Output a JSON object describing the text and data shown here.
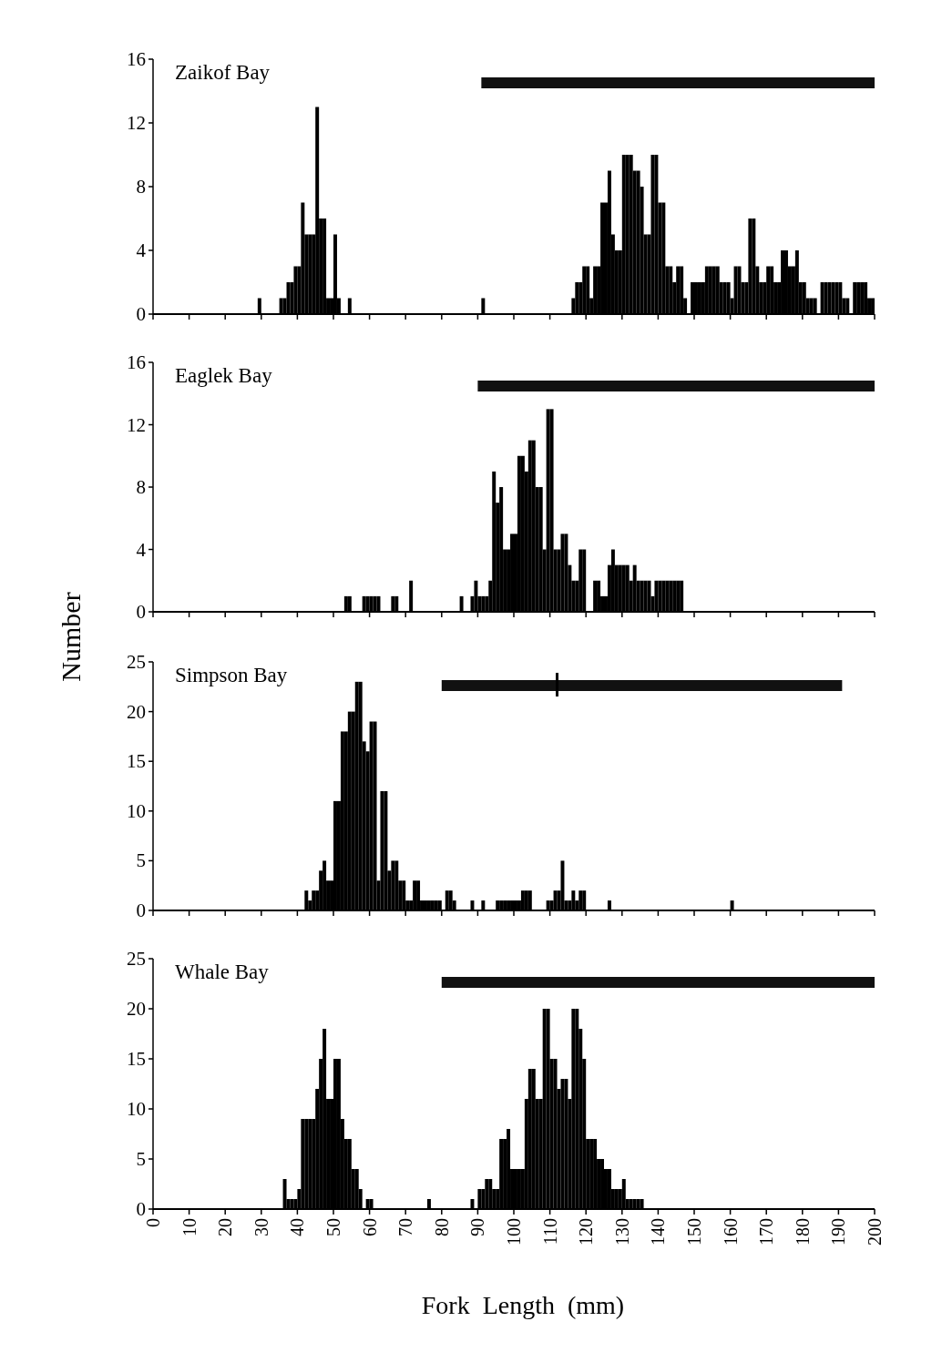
{
  "chart_data": [
    {
      "type": "histogram",
      "title": "Zaikof Bay",
      "xlim": [
        0,
        200
      ],
      "xticks": [
        0,
        10,
        20,
        30,
        40,
        50,
        60,
        70,
        80,
        90,
        100,
        110,
        120,
        130,
        140,
        150,
        160,
        170,
        180,
        190,
        200
      ],
      "ylim": [
        0,
        16
      ],
      "yticks": [
        0,
        4,
        8,
        12,
        16
      ],
      "tick_labels": "y",
      "color": "#000000",
      "grid": false,
      "bands": [
        {
          "axis": "x",
          "from": 91,
          "to": 200,
          "color": "#111111"
        }
      ],
      "bins": [
        0,
        1,
        2,
        3,
        4,
        5,
        6,
        7,
        8,
        9,
        10,
        11,
        12,
        13,
        14,
        15,
        16,
        17,
        18,
        19,
        20,
        21,
        22,
        23,
        24,
        25,
        26,
        27,
        28,
        29,
        30,
        31,
        32,
        33,
        34,
        35,
        36,
        37,
        38,
        39,
        40,
        41,
        42,
        43,
        44,
        45,
        46,
        47,
        48,
        49,
        50,
        51,
        52,
        53,
        54,
        55,
        56,
        57,
        58,
        59,
        60,
        61,
        62,
        63,
        64,
        65,
        66,
        67,
        68,
        69,
        70,
        71,
        72,
        73,
        74,
        75,
        76,
        77,
        78,
        79,
        80,
        81,
        82,
        83,
        84,
        85,
        86,
        87,
        88,
        89,
        90,
        91,
        92,
        93,
        94,
        95,
        96,
        97,
        98,
        99,
        100,
        101,
        102,
        103,
        104,
        105,
        106,
        107,
        108,
        109,
        110,
        111,
        112,
        113,
        114,
        115,
        116,
        117,
        118,
        119,
        120,
        121,
        122,
        123,
        124,
        125,
        126,
        127,
        128,
        129,
        130,
        131,
        132,
        133,
        134,
        135,
        136,
        137,
        138,
        139,
        140,
        141,
        142,
        143,
        144,
        145,
        146,
        147,
        148,
        149,
        150,
        151,
        152,
        153,
        154,
        155,
        156,
        157,
        158,
        159,
        160,
        161,
        162,
        163,
        164,
        165,
        166,
        167,
        168,
        169,
        170,
        171,
        172,
        173,
        174,
        175,
        176,
        177,
        178,
        179,
        180,
        181,
        182,
        183,
        184,
        185,
        186,
        187,
        188,
        189,
        190,
        191,
        192,
        193,
        194,
        195,
        196,
        197,
        198,
        199,
        200
      ],
      "values": [
        0,
        0,
        0,
        0,
        0,
        0,
        0,
        0,
        0,
        0,
        0,
        0,
        0,
        0,
        0,
        0,
        0,
        0,
        0,
        0,
        0,
        0,
        0,
        0,
        0,
        0,
        0,
        0,
        0,
        1,
        0,
        0,
        0,
        0,
        0,
        1,
        1,
        2,
        2,
        3,
        3,
        7,
        5,
        5,
        5,
        13,
        6,
        6,
        1,
        1,
        5,
        1,
        0,
        0,
        1,
        0,
        0,
        0,
        0,
        0,
        0,
        0,
        0,
        0,
        0,
        0,
        0,
        0,
        0,
        0,
        0,
        0,
        0,
        0,
        0,
        0,
        0,
        0,
        0,
        0,
        0,
        0,
        0,
        0,
        0,
        0,
        0,
        0,
        0,
        0,
        0,
        1,
        0,
        0,
        0,
        0,
        0,
        0,
        0,
        0,
        0,
        0,
        0,
        0,
        0,
        0,
        0,
        0,
        0,
        0,
        0,
        0,
        0,
        0,
        0,
        0,
        1,
        2,
        2,
        3,
        3,
        1,
        3,
        3,
        7,
        7,
        9,
        5,
        4,
        4,
        10,
        10,
        10,
        9,
        9,
        8,
        5,
        5,
        10,
        10,
        7,
        7,
        3,
        3,
        2,
        3,
        3,
        1,
        0,
        2,
        2,
        2,
        2,
        3,
        3,
        3,
        3,
        2,
        2,
        2,
        1,
        3,
        3,
        2,
        2,
        6,
        6,
        3,
        2,
        2,
        3,
        3,
        2,
        2,
        4,
        4,
        3,
        3,
        4,
        2,
        2,
        1,
        1,
        1,
        0,
        2,
        2,
        2,
        2,
        2,
        2,
        1,
        1,
        0,
        2,
        2,
        2,
        2,
        1,
        1
      ]
    },
    {
      "type": "histogram",
      "title": "Eaglek Bay",
      "ylabel": "Number",
      "xlim": [
        0,
        200
      ],
      "xticks": [
        0,
        10,
        20,
        30,
        40,
        50,
        60,
        70,
        80,
        90,
        100,
        110,
        120,
        130,
        140,
        150,
        160,
        170,
        180,
        190,
        200
      ],
      "ylim": [
        0,
        16
      ],
      "yticks": [
        0,
        4,
        8,
        12,
        16
      ],
      "tick_labels": "y",
      "color": "#000000",
      "grid": false,
      "bands": [
        {
          "axis": "x",
          "from": 90,
          "to": 200,
          "color": "#111111"
        }
      ],
      "bins": [
        0,
        1,
        2,
        3,
        4,
        5,
        6,
        7,
        8,
        9,
        10,
        11,
        12,
        13,
        14,
        15,
        16,
        17,
        18,
        19,
        20,
        21,
        22,
        23,
        24,
        25,
        26,
        27,
        28,
        29,
        30,
        31,
        32,
        33,
        34,
        35,
        36,
        37,
        38,
        39,
        40,
        41,
        42,
        43,
        44,
        45,
        46,
        47,
        48,
        49,
        50,
        51,
        52,
        53,
        54,
        55,
        56,
        57,
        58,
        59,
        60,
        61,
        62,
        63,
        64,
        65,
        66,
        67,
        68,
        69,
        70,
        71,
        72,
        73,
        74,
        75,
        76,
        77,
        78,
        79,
        80,
        81,
        82,
        83,
        84,
        85,
        86,
        87,
        88,
        89,
        90,
        91,
        92,
        93,
        94,
        95,
        96,
        97,
        98,
        99,
        100,
        101,
        102,
        103,
        104,
        105,
        106,
        107,
        108,
        109,
        110,
        111,
        112,
        113,
        114,
        115,
        116,
        117,
        118,
        119,
        120,
        121,
        122,
        123,
        124,
        125,
        126,
        127,
        128,
        129,
        130,
        131,
        132,
        133,
        134,
        135,
        136,
        137,
        138,
        139,
        140,
        141,
        142,
        143,
        144,
        145,
        146,
        147,
        148,
        149,
        150,
        151,
        152,
        153,
        154,
        155,
        156,
        157,
        158,
        159,
        160,
        161,
        162,
        163,
        164,
        165,
        166,
        167,
        168,
        169,
        170,
        171,
        172,
        173,
        174,
        175,
        176,
        177,
        178,
        179,
        180,
        181,
        182,
        183,
        184,
        185,
        186,
        187,
        188,
        189,
        190,
        191,
        192,
        193,
        194,
        195,
        196,
        197,
        198,
        199,
        200
      ],
      "values": [
        0,
        0,
        0,
        0,
        0,
        0,
        0,
        0,
        0,
        0,
        0,
        0,
        0,
        0,
        0,
        0,
        0,
        0,
        0,
        0,
        0,
        0,
        0,
        0,
        0,
        0,
        0,
        0,
        0,
        0,
        0,
        0,
        0,
        0,
        0,
        0,
        0,
        0,
        0,
        0,
        0,
        0,
        0,
        0,
        0,
        0,
        0,
        0,
        0,
        0,
        0,
        0,
        0,
        1,
        1,
        0,
        0,
        0,
        1,
        1,
        1,
        1,
        1,
        0,
        0,
        0,
        1,
        1,
        0,
        0,
        0,
        2,
        0,
        0,
        0,
        0,
        0,
        0,
        0,
        0,
        0,
        0,
        0,
        0,
        0,
        1,
        0,
        0,
        1,
        2,
        1,
        1,
        1,
        2,
        9,
        7,
        8,
        4,
        4,
        5,
        5,
        10,
        10,
        9,
        11,
        11,
        8,
        8,
        4,
        13,
        13,
        4,
        4,
        5,
        5,
        3,
        2,
        2,
        4,
        4,
        0,
        0,
        2,
        2,
        1,
        1,
        3,
        4,
        3,
        3,
        3,
        3,
        2,
        3,
        2,
        2,
        2,
        2,
        1,
        2,
        2,
        2,
        2,
        2,
        2,
        2,
        2,
        0,
        0,
        0,
        0,
        0,
        0,
        0,
        0,
        0,
        0,
        0,
        0,
        0,
        0,
        0,
        0,
        0,
        0,
        0,
        0,
        0,
        0,
        0,
        0,
        0,
        0,
        0,
        0,
        0,
        0,
        0,
        0,
        0,
        0,
        0,
        0,
        0,
        0,
        0,
        0,
        0,
        0,
        0,
        0,
        0,
        0,
        0,
        0,
        0,
        0,
        0,
        0,
        0
      ]
    },
    {
      "type": "histogram",
      "title": "Simpson Bay",
      "xlim": [
        0,
        200
      ],
      "xticks": [
        0,
        10,
        20,
        30,
        40,
        50,
        60,
        70,
        80,
        90,
        100,
        110,
        120,
        130,
        140,
        150,
        160,
        170,
        180,
        190,
        200
      ],
      "ylim": [
        0,
        25
      ],
      "yticks": [
        0,
        5,
        10,
        15,
        20,
        25
      ],
      "tick_labels": "y",
      "color": "#000000",
      "grid": false,
      "bands": [
        {
          "axis": "x",
          "from": 80,
          "to": 191,
          "color": "#111111"
        }
      ],
      "ref_lines": [
        {
          "axis": "x",
          "value": 112,
          "color": "#000000"
        }
      ],
      "bins": [
        0,
        1,
        2,
        3,
        4,
        5,
        6,
        7,
        8,
        9,
        10,
        11,
        12,
        13,
        14,
        15,
        16,
        17,
        18,
        19,
        20,
        21,
        22,
        23,
        24,
        25,
        26,
        27,
        28,
        29,
        30,
        31,
        32,
        33,
        34,
        35,
        36,
        37,
        38,
        39,
        40,
        41,
        42,
        43,
        44,
        45,
        46,
        47,
        48,
        49,
        50,
        51,
        52,
        53,
        54,
        55,
        56,
        57,
        58,
        59,
        60,
        61,
        62,
        63,
        64,
        65,
        66,
        67,
        68,
        69,
        70,
        71,
        72,
        73,
        74,
        75,
        76,
        77,
        78,
        79,
        80,
        81,
        82,
        83,
        84,
        85,
        86,
        87,
        88,
        89,
        90,
        91,
        92,
        93,
        94,
        95,
        96,
        97,
        98,
        99,
        100,
        101,
        102,
        103,
        104,
        105,
        106,
        107,
        108,
        109,
        110,
        111,
        112,
        113,
        114,
        115,
        116,
        117,
        118,
        119,
        120,
        121,
        122,
        123,
        124,
        125,
        126,
        127,
        128,
        129,
        130,
        131,
        132,
        133,
        134,
        135,
        136,
        137,
        138,
        139,
        140,
        141,
        142,
        143,
        144,
        145,
        146,
        147,
        148,
        149,
        150,
        151,
        152,
        153,
        154,
        155,
        156,
        157,
        158,
        159,
        160,
        161,
        162,
        163,
        164,
        165,
        166,
        167,
        168,
        169,
        170,
        171,
        172,
        173,
        174,
        175,
        176,
        177,
        178,
        179,
        180,
        181,
        182,
        183,
        184,
        185,
        186,
        187,
        188,
        189,
        190,
        191,
        192,
        193,
        194,
        195,
        196,
        197,
        198,
        199,
        200
      ],
      "values": [
        0,
        0,
        0,
        0,
        0,
        0,
        0,
        0,
        0,
        0,
        0,
        0,
        0,
        0,
        0,
        0,
        0,
        0,
        0,
        0,
        0,
        0,
        0,
        0,
        0,
        0,
        0,
        0,
        0,
        0,
        0,
        0,
        0,
        0,
        0,
        0,
        0,
        0,
        0,
        0,
        0,
        0,
        2,
        1,
        2,
        2,
        4,
        5,
        3,
        3,
        11,
        11,
        18,
        18,
        20,
        20,
        23,
        23,
        17,
        16,
        19,
        19,
        3,
        12,
        12,
        4,
        5,
        5,
        3,
        3,
        1,
        1,
        3,
        3,
        1,
        1,
        1,
        1,
        1,
        1,
        0,
        2,
        2,
        1,
        0,
        0,
        0,
        0,
        1,
        0,
        0,
        1,
        0,
        0,
        0,
        1,
        1,
        1,
        1,
        1,
        1,
        1,
        2,
        2,
        2,
        0,
        0,
        0,
        0,
        1,
        1,
        2,
        2,
        5,
        1,
        1,
        2,
        1,
        2,
        2,
        0,
        0,
        0,
        0,
        0,
        0,
        1,
        0,
        0,
        0,
        0,
        0,
        0,
        0,
        0,
        0,
        0,
        0,
        0,
        0,
        0,
        0,
        0,
        0,
        0,
        0,
        0,
        0,
        0,
        0,
        0,
        0,
        0,
        0,
        0,
        0,
        0,
        0,
        0,
        0,
        1,
        0,
        0,
        0,
        0,
        0,
        0,
        0,
        0,
        0,
        0,
        0,
        0,
        0,
        0,
        0,
        0,
        0,
        0,
        0,
        0,
        0,
        0,
        0,
        0,
        0,
        0,
        0,
        0,
        0,
        0,
        0,
        0,
        0,
        0,
        0,
        0,
        0,
        0,
        0
      ]
    },
    {
      "type": "histogram",
      "title": "Whale Bay",
      "xlabel": "Fork  Length  (mm)",
      "xlim": [
        0,
        200
      ],
      "xticks": [
        0,
        10,
        20,
        30,
        40,
        50,
        60,
        70,
        80,
        90,
        100,
        110,
        120,
        130,
        140,
        150,
        160,
        170,
        180,
        190,
        200
      ],
      "ylim": [
        0,
        25
      ],
      "yticks": [
        0,
        5,
        10,
        15,
        20,
        25
      ],
      "color": "#000000",
      "grid": false,
      "bands": [
        {
          "axis": "x",
          "from": 80,
          "to": 200,
          "color": "#111111"
        }
      ],
      "bins": [
        0,
        1,
        2,
        3,
        4,
        5,
        6,
        7,
        8,
        9,
        10,
        11,
        12,
        13,
        14,
        15,
        16,
        17,
        18,
        19,
        20,
        21,
        22,
        23,
        24,
        25,
        26,
        27,
        28,
        29,
        30,
        31,
        32,
        33,
        34,
        35,
        36,
        37,
        38,
        39,
        40,
        41,
        42,
        43,
        44,
        45,
        46,
        47,
        48,
        49,
        50,
        51,
        52,
        53,
        54,
        55,
        56,
        57,
        58,
        59,
        60,
        61,
        62,
        63,
        64,
        65,
        66,
        67,
        68,
        69,
        70,
        71,
        72,
        73,
        74,
        75,
        76,
        77,
        78,
        79,
        80,
        81,
        82,
        83,
        84,
        85,
        86,
        87,
        88,
        89,
        90,
        91,
        92,
        93,
        94,
        95,
        96,
        97,
        98,
        99,
        100,
        101,
        102,
        103,
        104,
        105,
        106,
        107,
        108,
        109,
        110,
        111,
        112,
        113,
        114,
        115,
        116,
        117,
        118,
        119,
        120,
        121,
        122,
        123,
        124,
        125,
        126,
        127,
        128,
        129,
        130,
        131,
        132,
        133,
        134,
        135,
        136,
        137,
        138,
        139,
        140,
        141,
        142,
        143,
        144,
        145,
        146,
        147,
        148,
        149,
        150,
        151,
        152,
        153,
        154,
        155,
        156,
        157,
        158,
        159,
        160,
        161,
        162,
        163,
        164,
        165,
        166,
        167,
        168,
        169,
        170,
        171,
        172,
        173,
        174,
        175,
        176,
        177,
        178,
        179,
        180,
        181,
        182,
        183,
        184,
        185,
        186,
        187,
        188,
        189,
        190,
        191,
        192,
        193,
        194,
        195,
        196,
        197,
        198,
        199,
        200
      ],
      "values": [
        0,
        0,
        0,
        0,
        0,
        0,
        0,
        0,
        0,
        0,
        0,
        0,
        0,
        0,
        0,
        0,
        0,
        0,
        0,
        0,
        0,
        0,
        0,
        0,
        0,
        0,
        0,
        0,
        0,
        0,
        0,
        0,
        0,
        0,
        0,
        0,
        3,
        1,
        1,
        1,
        2,
        9,
        9,
        9,
        9,
        12,
        15,
        18,
        11,
        11,
        15,
        15,
        9,
        7,
        7,
        4,
        4,
        2,
        0,
        1,
        1,
        0,
        0,
        0,
        0,
        0,
        0,
        0,
        0,
        0,
        0,
        0,
        0,
        0,
        0,
        0,
        1,
        0,
        0,
        0,
        0,
        0,
        0,
        0,
        0,
        0,
        0,
        0,
        1,
        0,
        2,
        2,
        3,
        3,
        2,
        2,
        7,
        7,
        8,
        4,
        4,
        4,
        4,
        11,
        14,
        14,
        11,
        11,
        20,
        20,
        15,
        15,
        12,
        13,
        13,
        11,
        20,
        20,
        18,
        15,
        7,
        7,
        7,
        5,
        5,
        4,
        4,
        2,
        2,
        2,
        3,
        1,
        1,
        1,
        1,
        1,
        0,
        0,
        0,
        0,
        0,
        0,
        0,
        0,
        0,
        0,
        0,
        0,
        0,
        0,
        0,
        0,
        0,
        0,
        0,
        0,
        0,
        0,
        0,
        0,
        0,
        0,
        0,
        0,
        0,
        0,
        0,
        0,
        0,
        0,
        0,
        0,
        0,
        0,
        0,
        0,
        0,
        0,
        0,
        0,
        0,
        0,
        0,
        0,
        0,
        0,
        0,
        0,
        0,
        0,
        0,
        0,
        0,
        0,
        0,
        0,
        0,
        0,
        0,
        0
      ]
    }
  ]
}
